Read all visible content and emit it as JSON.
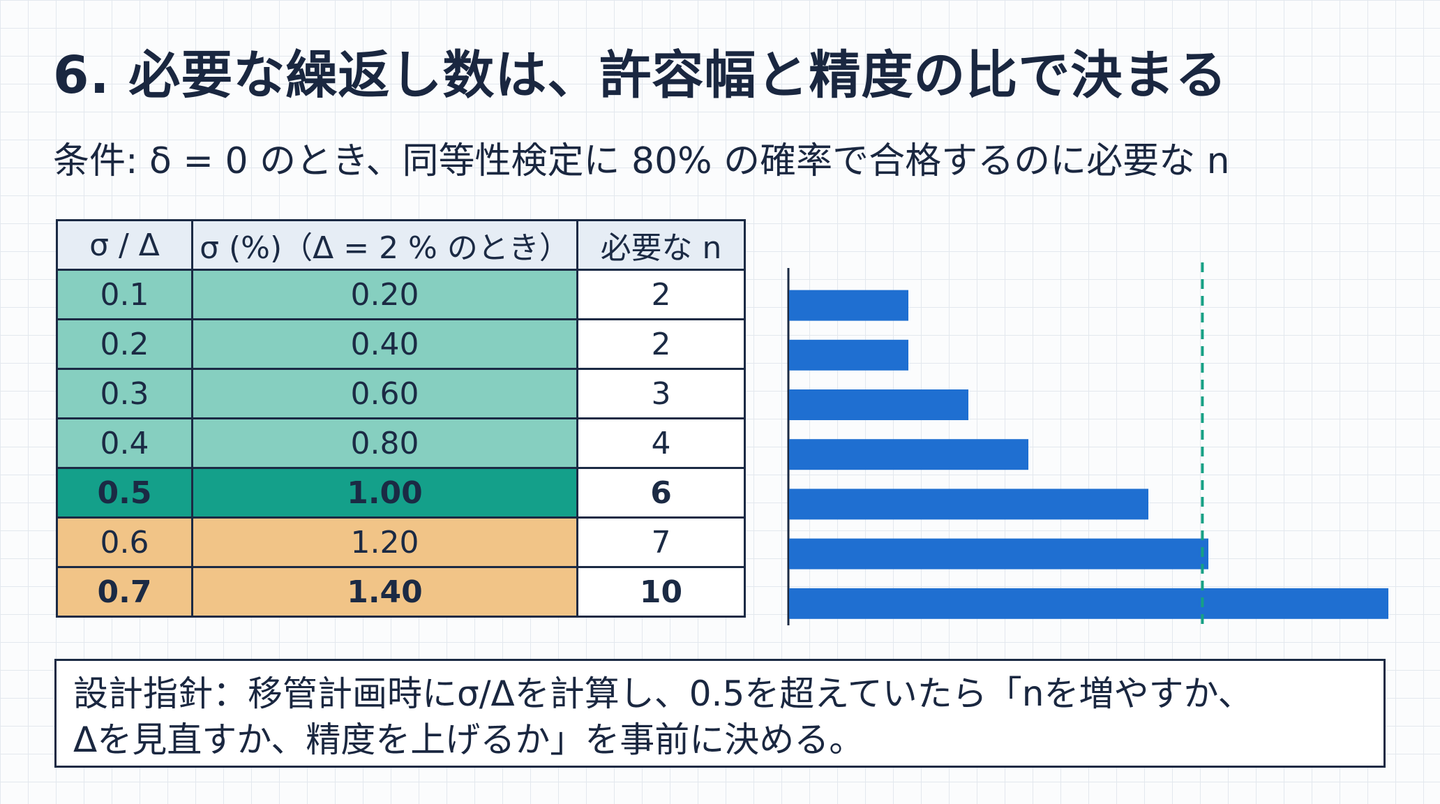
{
  "title": "6. 必要な繰返し数は、許容幅と精度の比で決まる",
  "subtitle": "条件: δ = 0 のとき、同等性検定に 80% の確率で合格するのに必要な n",
  "table": {
    "headers": [
      "σ / Δ",
      "σ (%)（Δ = 2 % のとき）",
      "必要な n"
    ],
    "rows": [
      {
        "ratio": "0.1",
        "sigma": "0.20",
        "n": "2",
        "band": "teal-light",
        "bold": false
      },
      {
        "ratio": "0.2",
        "sigma": "0.40",
        "n": "2",
        "band": "teal-light",
        "bold": false
      },
      {
        "ratio": "0.3",
        "sigma": "0.60",
        "n": "3",
        "band": "teal-light",
        "bold": false
      },
      {
        "ratio": "0.4",
        "sigma": "0.80",
        "n": "4",
        "band": "teal-light",
        "bold": false
      },
      {
        "ratio": "0.5",
        "sigma": "1.00",
        "n": "6",
        "band": "teal-dark",
        "bold": true
      },
      {
        "ratio": "0.6",
        "sigma": "1.20",
        "n": "7",
        "band": "orange",
        "bold": false
      },
      {
        "ratio": "0.7",
        "sigma": "1.40",
        "n": "10",
        "band": "orange",
        "bold": true
      }
    ]
  },
  "chart_data": {
    "type": "bar",
    "orientation": "horizontal",
    "categories": [
      "0.1",
      "0.2",
      "0.3",
      "0.4",
      "0.5",
      "0.6",
      "0.7"
    ],
    "values": [
      2,
      2,
      3,
      4,
      6,
      7,
      10
    ],
    "xlim": [
      0,
      10
    ],
    "reference_line": {
      "x": 6.9,
      "style": "dashed",
      "color": "#16a085"
    },
    "bar_color": "#1f6fd1",
    "axis_color": "#1b2a44",
    "grid": false,
    "title": "",
    "xlabel": "",
    "ylabel": ""
  },
  "note": {
    "line1": "設計指針：移管計画時にσ/Δを計算し、0.5を超えていたら「nを増やすか、",
    "line2": "Δを見直すか、精度を上げるか」を事前に決める。"
  }
}
